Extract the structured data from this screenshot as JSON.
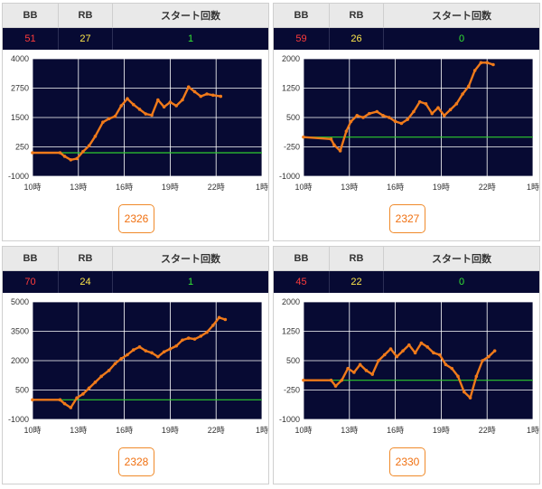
{
  "colors": {
    "plot_bg": "#070a33",
    "grid": "#ffffff",
    "line": "#f07a1a",
    "baseline": "#2ecc2e",
    "bb": "#ff3b3b",
    "rb": "#ffe84a",
    "start": "#33e633",
    "button": "#f07010"
  },
  "headers": {
    "bb": "BB",
    "rb": "RB",
    "start": "スタート回数"
  },
  "panels": [
    {
      "bb": "51",
      "rb": "27",
      "start": "1",
      "machine": "2326"
    },
    {
      "bb": "59",
      "rb": "26",
      "start": "0",
      "machine": "2327"
    },
    {
      "bb": "70",
      "rb": "24",
      "start": "1",
      "machine": "2328"
    },
    {
      "bb": "45",
      "rb": "22",
      "start": "0",
      "machine": "2330"
    }
  ],
  "chart_data": [
    {
      "type": "line",
      "xlabel": "",
      "ylabel": "",
      "x_ticks": [
        "10時",
        "13時",
        "16時",
        "19時",
        "22時",
        "1時"
      ],
      "xlim": [
        10,
        25
      ],
      "y_ticks": [
        "4000",
        "2750",
        "1500",
        "250",
        "-1000"
      ],
      "ylim": [
        -1000,
        4000
      ],
      "grid": true,
      "baseline": 0,
      "x": [
        10,
        11.8,
        12.1,
        12.5,
        12.9,
        13.3,
        13.7,
        14.1,
        14.6,
        15.0,
        15.4,
        15.8,
        16.2,
        16.6,
        17.0,
        17.4,
        17.8,
        18.2,
        18.6,
        19.0,
        19.4,
        19.8,
        20.2,
        20.6,
        21.0,
        21.4,
        21.8,
        22.3
      ],
      "y": [
        0,
        0,
        -150,
        -300,
        -250,
        50,
        300,
        700,
        1300,
        1450,
        1550,
        2000,
        2300,
        2050,
        1850,
        1650,
        1600,
        2250,
        1950,
        2150,
        2000,
        2250,
        2800,
        2600,
        2400,
        2500,
        2450,
        2400
      ]
    },
    {
      "type": "line",
      "xlabel": "",
      "ylabel": "",
      "x_ticks": [
        "10時",
        "13時",
        "16時",
        "19時",
        "22時",
        "1時"
      ],
      "xlim": [
        10,
        25
      ],
      "y_ticks": [
        "2000",
        "1250",
        "500",
        "-250",
        "-1000"
      ],
      "ylim": [
        -1000,
        2000
      ],
      "grid": true,
      "baseline": 0,
      "x": [
        10,
        11.8,
        12.0,
        12.4,
        12.8,
        13.1,
        13.5,
        13.9,
        14.3,
        14.8,
        15.2,
        15.6,
        16.0,
        16.4,
        16.8,
        17.2,
        17.6,
        18.0,
        18.4,
        18.8,
        19.2,
        19.6,
        20.0,
        20.4,
        20.8,
        21.2,
        21.6,
        22.0,
        22.4
      ],
      "y": [
        0,
        -50,
        -200,
        -350,
        150,
        400,
        550,
        500,
        600,
        650,
        550,
        500,
        400,
        350,
        450,
        650,
        900,
        850,
        600,
        750,
        550,
        700,
        850,
        1100,
        1300,
        1700,
        1900,
        1900,
        1850
      ]
    },
    {
      "type": "line",
      "xlabel": "",
      "ylabel": "",
      "x_ticks": [
        "10時",
        "13時",
        "16時",
        "19時",
        "22時",
        "1時"
      ],
      "xlim": [
        10,
        25
      ],
      "y_ticks": [
        "5000",
        "3500",
        "2000",
        "500",
        "-1000"
      ],
      "ylim": [
        -1000,
        5000
      ],
      "grid": true,
      "baseline": 0,
      "x": [
        10,
        11.8,
        12.1,
        12.5,
        12.9,
        13.3,
        13.7,
        14.1,
        14.5,
        15.0,
        15.4,
        15.8,
        16.2,
        16.6,
        17.0,
        17.4,
        17.8,
        18.2,
        18.6,
        19.0,
        19.4,
        19.8,
        20.2,
        20.6,
        21.0,
        21.4,
        21.8,
        22.2,
        22.6
      ],
      "y": [
        0,
        0,
        -200,
        -400,
        100,
        300,
        600,
        900,
        1200,
        1500,
        1850,
        2100,
        2300,
        2550,
        2700,
        2500,
        2400,
        2200,
        2450,
        2600,
        2750,
        3050,
        3150,
        3100,
        3250,
        3450,
        3800,
        4200,
        4100
      ]
    },
    {
      "type": "line",
      "xlabel": "",
      "ylabel": "",
      "x_ticks": [
        "10時",
        "13時",
        "16時",
        "19時",
        "22時",
        "1時"
      ],
      "xlim": [
        10,
        25
      ],
      "y_ticks": [
        "2000",
        "1250",
        "500",
        "-250",
        "-1000"
      ],
      "ylim": [
        -1000,
        2000
      ],
      "grid": true,
      "baseline": 0,
      "x": [
        10,
        11.8,
        12.1,
        12.5,
        12.9,
        13.3,
        13.7,
        14.1,
        14.5,
        14.9,
        15.3,
        15.7,
        16.1,
        16.5,
        16.9,
        17.3,
        17.7,
        18.1,
        18.5,
        18.9,
        19.3,
        19.7,
        20.1,
        20.5,
        20.9,
        21.3,
        21.7,
        22.1,
        22.5
      ],
      "y": [
        0,
        0,
        -150,
        0,
        300,
        200,
        400,
        250,
        150,
        500,
        650,
        800,
        600,
        750,
        900,
        700,
        950,
        850,
        700,
        650,
        400,
        300,
        100,
        -300,
        -450,
        100,
        500,
        600,
        750
      ]
    }
  ]
}
